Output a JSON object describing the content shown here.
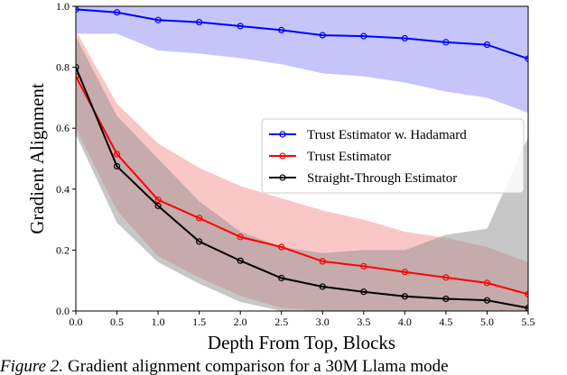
{
  "chart_data": {
    "type": "line",
    "xlabel": "Depth From Top, Blocks",
    "ylabel": "Gradient Alignment",
    "caption_label": "Figure 2.",
    "caption": "Gradient alignment comparison for a 30M Llama mode",
    "x": [
      0,
      0.5,
      1,
      1.5,
      2,
      2.5,
      3,
      3.5,
      4,
      4.5,
      5,
      5.5
    ],
    "xlim": [
      0,
      5.5
    ],
    "ylim": [
      0,
      1
    ],
    "xticks": [
      {
        "value": 0,
        "label": "0.0"
      },
      0.5,
      {
        "value": 1,
        "label": "1.0"
      },
      1.5,
      {
        "value": 2,
        "label": "2.0"
      },
      2.5,
      {
        "value": 3,
        "label": "3.0"
      },
      3.5,
      {
        "value": 4,
        "label": "4.0"
      },
      4.5,
      {
        "value": 5,
        "label": "5.0"
      },
      5.5
    ],
    "yticks": [
      {
        "value": 0,
        "label": "0.0"
      },
      0.2,
      0.4,
      0.6,
      0.8,
      {
        "value": 1,
        "label": "1.0"
      }
    ],
    "legend": "right",
    "series": [
      {
        "name": "Trust Estimator w. Hadamard",
        "color": "#0000ff",
        "band_color": "#8c8cf5",
        "values": [
          0.99,
          0.98,
          0.955,
          0.948,
          0.935,
          0.922,
          0.905,
          0.902,
          0.895,
          0.882,
          0.874,
          0.828
        ],
        "upper": [
          1,
          1,
          1,
          1,
          1,
          1,
          1,
          1,
          1,
          1,
          1,
          1
        ],
        "lower": [
          0.91,
          0.91,
          0.855,
          0.845,
          0.83,
          0.81,
          0.78,
          0.77,
          0.75,
          0.72,
          0.7,
          0.65
        ]
      },
      {
        "name": "Trust Estimator",
        "color": "#ff0000",
        "band_color": "#f59090",
        "values": [
          0.77,
          0.515,
          0.365,
          0.305,
          0.243,
          0.21,
          0.163,
          0.147,
          0.128,
          0.11,
          0.092,
          0.055
        ],
        "upper": [
          0.92,
          0.68,
          0.55,
          0.47,
          0.41,
          0.37,
          0.33,
          0.3,
          0.26,
          0.24,
          0.21,
          0.16
        ],
        "lower": [
          0.6,
          0.33,
          0.18,
          0.11,
          0.05,
          0.01,
          0,
          0,
          0,
          0,
          0,
          0
        ]
      },
      {
        "name": "Straight-Through Estimator",
        "color": "#000000",
        "band_color": "#909090",
        "values": [
          0.8,
          0.475,
          0.345,
          0.228,
          0.165,
          0.108,
          0.08,
          0.063,
          0.048,
          0.04,
          0.035,
          0.01
        ],
        "upper": [
          0.9,
          0.64,
          0.5,
          0.36,
          0.26,
          0.21,
          0.19,
          0.2,
          0.2,
          0.25,
          0.27,
          0.57
        ],
        "lower": [
          0.58,
          0.29,
          0.16,
          0.09,
          0.03,
          0,
          0,
          0,
          0,
          0,
          0,
          0
        ]
      }
    ]
  }
}
